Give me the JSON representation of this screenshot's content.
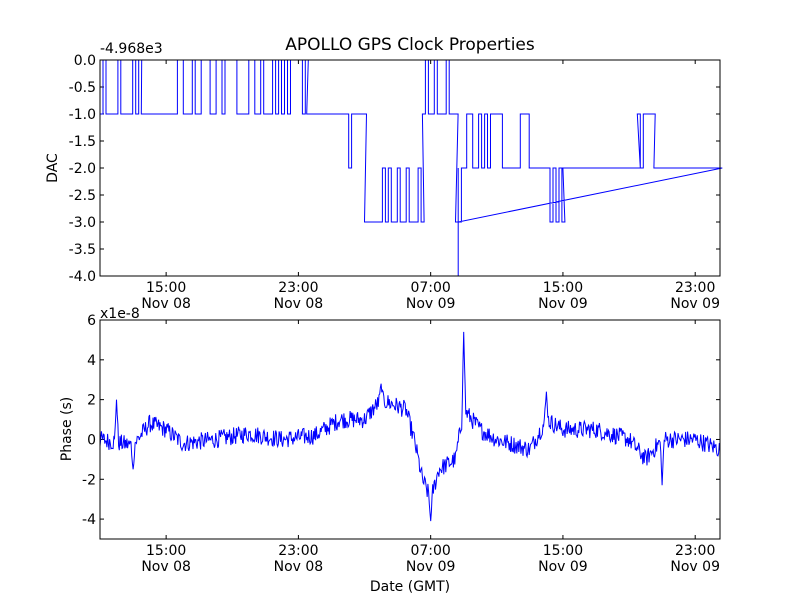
{
  "title": "APOLLO GPS Clock Properties",
  "xlabel": "Date (GMT)",
  "colors": {
    "line": "#0000ff",
    "axes": "#000000",
    "background": "#ffffff"
  },
  "chart_data": [
    {
      "type": "line",
      "name": "dac-panel",
      "ylabel": "DAC",
      "offset_label": "-4.968e3",
      "xlim": [
        "Nov 08 11:00",
        "Nov 10 00:30"
      ],
      "ylim": [
        -4.0,
        0.0
      ],
      "y_ticks": [
        "0.0",
        "-0.5",
        "-1.0",
        "-1.5",
        "-2.0",
        "-2.5",
        "-3.0",
        "-3.5",
        "-4.0"
      ],
      "x_ticks": [
        {
          "time": "15:00",
          "date": "Nov 08"
        },
        {
          "time": "23:00",
          "date": "Nov 08"
        },
        {
          "time": "07:00",
          "date": "Nov 09"
        },
        {
          "time": "15:00",
          "date": "Nov 09"
        },
        {
          "time": "23:00",
          "date": "Nov 09"
        }
      ],
      "levels": [
        {
          "start": "Nov 08 11:00",
          "end": "Nov 08 13:30",
          "base": -1.0,
          "alt": 0.0
        },
        {
          "start": "Nov 08 13:30",
          "end": "Nov 08 15:30",
          "base": -1.0,
          "alt": -1.0
        },
        {
          "start": "Nov 08 15:30",
          "end": "Nov 08 23:30",
          "base": -1.0,
          "alt": 0.0
        },
        {
          "start": "Nov 08 23:30",
          "end": "Nov 09 01:30",
          "base": -1.0,
          "alt": -1.0
        },
        {
          "start": "Nov 09 01:30",
          "end": "Nov 09 03:00",
          "base": -2.0,
          "alt": -1.0
        },
        {
          "start": "Nov 09 03:00",
          "end": "Nov 09 06:30",
          "base": -3.0,
          "alt": -2.0
        },
        {
          "start": "Nov 09 06:30",
          "end": "Nov 09 08:30",
          "base": -1.0,
          "alt": 0.0
        },
        {
          "start": "Nov 09 08:30",
          "end": "Nov 09 09:00",
          "base": -3.0,
          "alt": -2.0
        },
        {
          "start": "Nov 09 09:00",
          "end": "Nov 09 13:30",
          "base": -2.0,
          "alt": -1.0
        },
        {
          "start": "Nov 09 13:30",
          "end": "Nov 09 15:00",
          "base": -2.0,
          "alt": -3.0
        },
        {
          "start": "Nov 09 15:00",
          "end": "Nov 09 19:30",
          "base": -2.0,
          "alt": -2.0
        },
        {
          "start": "Nov 09 19:30",
          "end": "Nov 09 20:30",
          "base": -2.0,
          "alt": -1.0
        },
        {
          "start": "Nov 09 20:30",
          "end": "Nov 10 00:30",
          "base": -2.0,
          "alt": -2.0
        }
      ],
      "min_spike": {
        "time": "Nov 09 08:40",
        "value": -4.0
      }
    },
    {
      "type": "line",
      "name": "phase-panel",
      "ylabel": "Phase (s)",
      "offset_label": "x1e-8",
      "xlim": [
        "Nov 08 11:00",
        "Nov 10 00:30"
      ],
      "ylim": [
        -5,
        6
      ],
      "y_ticks": [
        "6",
        "4",
        "2",
        "0",
        "-2",
        "-4"
      ],
      "x_ticks": [
        {
          "time": "15:00",
          "date": "Nov 08"
        },
        {
          "time": "23:00",
          "date": "Nov 08"
        },
        {
          "time": "07:00",
          "date": "Nov 09"
        },
        {
          "time": "15:00",
          "date": "Nov 09"
        },
        {
          "time": "23:00",
          "date": "Nov 09"
        }
      ],
      "trend": [
        {
          "time": "Nov 08 11:00",
          "value": 0.0
        },
        {
          "time": "Nov 08 13:00",
          "value": -0.3
        },
        {
          "time": "Nov 08 14:00",
          "value": 0.8
        },
        {
          "time": "Nov 08 15:00",
          "value": 0.5
        },
        {
          "time": "Nov 08 16:00",
          "value": -0.2
        },
        {
          "time": "Nov 08 18:00",
          "value": 0.0
        },
        {
          "time": "Nov 08 20:00",
          "value": 0.3
        },
        {
          "time": "Nov 08 22:00",
          "value": 0.0
        },
        {
          "time": "Nov 09 00:00",
          "value": 0.2
        },
        {
          "time": "Nov 09 01:30",
          "value": 1.0
        },
        {
          "time": "Nov 09 03:00",
          "value": 1.0
        },
        {
          "time": "Nov 09 04:00",
          "value": 2.0
        },
        {
          "time": "Nov 09 05:30",
          "value": 1.5
        },
        {
          "time": "Nov 09 06:00",
          "value": 0.0
        },
        {
          "time": "Nov 09 06:30",
          "value": -2.0
        },
        {
          "time": "Nov 09 07:00",
          "value": -3.0
        },
        {
          "time": "Nov 09 07:30",
          "value": -1.5
        },
        {
          "time": "Nov 09 08:30",
          "value": -1.0
        },
        {
          "time": "Nov 09 09:00",
          "value": 1.5
        },
        {
          "time": "Nov 09 10:00",
          "value": 0.5
        },
        {
          "time": "Nov 09 11:00",
          "value": 0.0
        },
        {
          "time": "Nov 09 13:00",
          "value": -0.5
        },
        {
          "time": "Nov 09 14:00",
          "value": 1.0
        },
        {
          "time": "Nov 09 15:00",
          "value": 0.5
        },
        {
          "time": "Nov 09 17:00",
          "value": 0.5
        },
        {
          "time": "Nov 09 19:00",
          "value": 0.0
        },
        {
          "time": "Nov 09 20:00",
          "value": -1.0
        },
        {
          "time": "Nov 09 21:00",
          "value": 0.0
        },
        {
          "time": "Nov 09 23:00",
          "value": 0.0
        },
        {
          "time": "Nov 10 00:30",
          "value": -0.5
        }
      ],
      "peaks": [
        {
          "time": "Nov 08 12:00",
          "value": 2.0
        },
        {
          "time": "Nov 08 13:00",
          "value": -1.5
        },
        {
          "time": "Nov 09 04:00",
          "value": 2.8
        },
        {
          "time": "Nov 09 07:00",
          "value": -4.1
        },
        {
          "time": "Nov 09 09:00",
          "value": 5.4
        },
        {
          "time": "Nov 09 14:00",
          "value": 2.4
        },
        {
          "time": "Nov 09 21:00",
          "value": -2.3
        }
      ],
      "noise_amplitude": 0.45
    }
  ]
}
